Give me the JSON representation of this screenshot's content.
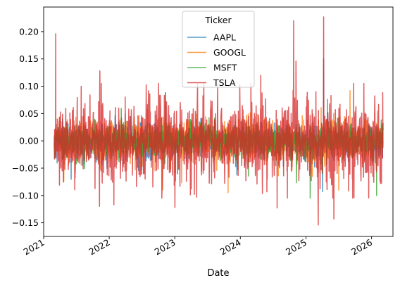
{
  "chart_data": {
    "type": "line",
    "xlabel": "Date",
    "ylabel": "",
    "title": "",
    "legend": {
      "title": "Ticker",
      "placement": "top-center"
    },
    "xlim": [
      "2021-01-01",
      "2026-04-30"
    ],
    "ylim": [
      -0.175,
      0.245
    ],
    "x_ticks": [
      "2021",
      "2022",
      "2023",
      "2024",
      "2025",
      "2026"
    ],
    "y_ticks": [
      -0.15,
      -0.1,
      -0.05,
      0.0,
      0.05,
      0.1,
      0.15,
      0.2
    ],
    "y_tick_labels": [
      "−0.15",
      "−0.10",
      "−0.05",
      "0.00",
      "0.05",
      "0.10",
      "0.15",
      "0.20"
    ],
    "grid": false,
    "date_range": [
      "2021-03-01",
      "2026-03-06"
    ],
    "series": [
      {
        "name": "AAPL",
        "color": "#1f77b4",
        "typical_daily_std": 0.016,
        "notable_points": [
          {
            "x": "2022-11-10",
            "y": 0.088
          },
          {
            "x": "2025-04-09",
            "y": 0.15
          },
          {
            "x": "2025-04-03",
            "y": -0.093
          }
        ]
      },
      {
        "name": "GOOGL",
        "color": "#ff7f0e",
        "typical_daily_std": 0.019,
        "notable_points": [
          {
            "x": "2023-02-08",
            "y": -0.077
          },
          {
            "x": "2023-10-25",
            "y": -0.095
          },
          {
            "x": "2025-09-03",
            "y": 0.092
          },
          {
            "x": "2022-10-26",
            "y": -0.09
          }
        ]
      },
      {
        "name": "MSFT",
        "color": "#2ca02c",
        "typical_daily_std": 0.016,
        "notable_points": [
          {
            "x": "2022-11-10",
            "y": 0.088
          },
          {
            "x": "2025-05-01",
            "y": 0.076
          },
          {
            "x": "2026-01-29",
            "y": -0.1
          },
          {
            "x": "2025-04-03",
            "y": -0.06
          }
        ]
      },
      {
        "name": "TSLA",
        "color": "#d62728",
        "typical_daily_std": 0.037,
        "notable_points": [
          {
            "x": "2021-03-09",
            "y": 0.196
          },
          {
            "x": "2021-11-10",
            "y": 0.128
          },
          {
            "x": "2021-11-08",
            "y": -0.12
          },
          {
            "x": "2022-01-27",
            "y": -0.117
          },
          {
            "x": "2023-01-02",
            "y": -0.122
          },
          {
            "x": "2023-04-20",
            "y": -0.098
          },
          {
            "x": "2024-04-24",
            "y": 0.12
          },
          {
            "x": "2024-07-24",
            "y": -0.123
          },
          {
            "x": "2024-10-24",
            "y": 0.22
          },
          {
            "x": "2024-11-06",
            "y": 0.146
          },
          {
            "x": "2025-03-10",
            "y": -0.154
          },
          {
            "x": "2025-04-09",
            "y": 0.227
          },
          {
            "x": "2025-06-05",
            "y": -0.143
          },
          {
            "x": "2025-05-12",
            "y": 0.068
          }
        ]
      }
    ]
  }
}
